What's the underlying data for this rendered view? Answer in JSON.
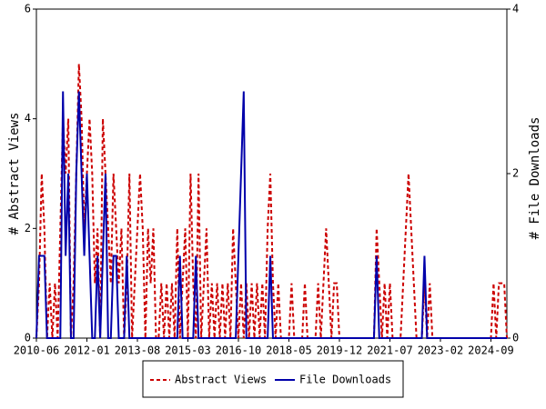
{
  "chart_data": {
    "type": "line",
    "x_label": null,
    "y_label": "# Abstract Views",
    "y2_label": "# File Downloads",
    "x": [
      "2010-06",
      "2010-07",
      "2010-08",
      "2010-09",
      "2010-10",
      "2010-11",
      "2010-12",
      "2011-01",
      "2011-02",
      "2011-03",
      "2011-04",
      "2011-05",
      "2011-06",
      "2011-07",
      "2011-08",
      "2011-09",
      "2011-10",
      "2011-11",
      "2011-12",
      "2012-01",
      "2012-02",
      "2012-03",
      "2012-04",
      "2012-05",
      "2012-06",
      "2012-07",
      "2012-08",
      "2012-09",
      "2012-10",
      "2012-11",
      "2012-12",
      "2013-01",
      "2013-02",
      "2013-03",
      "2013-04",
      "2013-05",
      "2013-06",
      "2013-07",
      "2013-08",
      "2013-09",
      "2013-10",
      "2013-11",
      "2013-12",
      "2014-01",
      "2014-02",
      "2014-03",
      "2014-04",
      "2014-05",
      "2014-06",
      "2014-07",
      "2014-08",
      "2014-09",
      "2014-10",
      "2014-11",
      "2014-12",
      "2015-01",
      "2015-02",
      "2015-03",
      "2015-04",
      "2015-05",
      "2015-06",
      "2015-07",
      "2015-08",
      "2015-09",
      "2015-10",
      "2015-11",
      "2015-12",
      "2016-01",
      "2016-02",
      "2016-03",
      "2016-04",
      "2016-05",
      "2016-06",
      "2016-07",
      "2016-08",
      "2016-09",
      "2016-10",
      "2016-11",
      "2016-12",
      "2017-01",
      "2017-02",
      "2017-03",
      "2017-04",
      "2017-05",
      "2017-06",
      "2017-07",
      "2017-08",
      "2017-09",
      "2017-10",
      "2017-11",
      "2017-12",
      "2018-01",
      "2018-02",
      "2018-03",
      "2018-04",
      "2018-05",
      "2018-06",
      "2018-07",
      "2018-08",
      "2018-09",
      "2018-10",
      "2018-11",
      "2018-12",
      "2019-01",
      "2019-02",
      "2019-03",
      "2019-04",
      "2019-05",
      "2019-06",
      "2019-07",
      "2019-08",
      "2019-09",
      "2019-10",
      "2019-11",
      "2019-12",
      "2020-01",
      "2020-02",
      "2020-03",
      "2020-04",
      "2020-05",
      "2020-06",
      "2020-07",
      "2020-08",
      "2020-09",
      "2020-10",
      "2020-11",
      "2020-12",
      "2021-01",
      "2021-02",
      "2021-03",
      "2021-04",
      "2021-05",
      "2021-06",
      "2021-07",
      "2021-08",
      "2021-09",
      "2021-10",
      "2021-11",
      "2021-12",
      "2022-01",
      "2022-02",
      "2022-03",
      "2022-04",
      "2022-05",
      "2022-06",
      "2022-07",
      "2022-08",
      "2022-09",
      "2022-10",
      "2022-11",
      "2022-12",
      "2023-01",
      "2023-02",
      "2023-03",
      "2023-04",
      "2023-05",
      "2023-06",
      "2023-07",
      "2023-08",
      "2023-09",
      "2023-10",
      "2023-11",
      "2023-12",
      "2024-01",
      "2024-02",
      "2024-03",
      "2024-04",
      "2024-05",
      "2024-06",
      "2024-07",
      "2024-08",
      "2024-09",
      "2024-10",
      "2024-11",
      "2024-12",
      "2025-01",
      "2025-02",
      "2025-03"
    ],
    "xlim": [
      "2010-06",
      "2025-03"
    ],
    "xticks": [
      "2010-06",
      "2012-01",
      "2013-08",
      "2015-03",
      "2016-10",
      "2018-05",
      "2019-12",
      "2021-07",
      "2023-02",
      "2024-09"
    ],
    "ylim": [
      0,
      6
    ],
    "yticks": [
      0,
      2,
      4,
      6
    ],
    "y2lim": [
      0,
      4
    ],
    "y2ticks": [
      0,
      2,
      4
    ],
    "legend": "bottom",
    "series": [
      {
        "name": "Abstract Views",
        "color": "#cc0000",
        "dash": true,
        "values": [
          0,
          1,
          3,
          2,
          0,
          1,
          0,
          1,
          0,
          2,
          4,
          3,
          4,
          0,
          1,
          3,
          5,
          4,
          2,
          3,
          4,
          3,
          1,
          2,
          0,
          4,
          3,
          2,
          1,
          3,
          2,
          1,
          2,
          0,
          1,
          3,
          0,
          1,
          2,
          3,
          2,
          0,
          2,
          1,
          2,
          0,
          0,
          1,
          0,
          1,
          0,
          1,
          0,
          2,
          0,
          1,
          2,
          0,
          3,
          1,
          0,
          3,
          0,
          1,
          2,
          0,
          1,
          0,
          1,
          0,
          1,
          0,
          1,
          0,
          2,
          1,
          0,
          1,
          0,
          1,
          0,
          1,
          0,
          1,
          0,
          1,
          0,
          2,
          3,
          1,
          0,
          1,
          0,
          0,
          0,
          0,
          1,
          0,
          0,
          0,
          0,
          1,
          0,
          0,
          0,
          0,
          1,
          0,
          1,
          2,
          1,
          0,
          1,
          1,
          0,
          0,
          0,
          0,
          0,
          0,
          0,
          0,
          0,
          0,
          0,
          0,
          0,
          0,
          2,
          1,
          0,
          1,
          0,
          1,
          0,
          0,
          0,
          0,
          1,
          2,
          3,
          2,
          1,
          0,
          0,
          0,
          1,
          0,
          1,
          0,
          0,
          0,
          0,
          0,
          0,
          0,
          0,
          0,
          0,
          0,
          0,
          0,
          0,
          0,
          0,
          0,
          0,
          0,
          0,
          0,
          0,
          0,
          1,
          0,
          1,
          1,
          1,
          0
        ]
      },
      {
        "name": "File Downloads",
        "color": "#0000aa",
        "dash": false,
        "axis": "y2",
        "values": [
          0,
          1,
          1,
          1,
          0,
          0,
          0,
          0,
          0,
          0,
          3,
          1,
          2,
          0,
          0,
          2,
          3,
          2,
          1,
          2,
          1,
          0,
          0,
          1,
          0,
          1,
          2,
          0,
          0,
          1,
          1,
          0,
          0,
          0,
          1,
          0,
          0,
          0,
          0,
          0,
          0,
          0,
          0,
          0,
          0,
          0,
          0,
          0,
          0,
          0,
          0,
          0,
          0,
          0,
          1,
          0,
          0,
          0,
          0,
          0,
          1,
          0,
          0,
          0,
          0,
          0,
          0,
          0,
          0,
          0,
          0,
          0,
          0,
          0,
          0,
          0,
          1,
          2,
          3,
          0,
          0,
          0,
          0,
          0,
          0,
          0,
          0,
          0,
          1,
          0,
          0,
          0,
          0,
          0,
          0,
          0,
          0,
          0,
          0,
          0,
          0,
          0,
          0,
          0,
          0,
          0,
          0,
          0,
          0,
          0,
          0,
          0,
          0,
          0,
          0,
          0,
          0,
          0,
          0,
          0,
          0,
          0,
          0,
          0,
          0,
          0,
          0,
          0,
          1,
          0,
          0,
          0,
          0,
          0,
          0,
          0,
          0,
          0,
          0,
          0,
          0,
          0,
          0,
          0,
          0,
          0,
          1,
          0,
          0,
          0,
          0,
          0,
          0,
          0,
          0,
          0,
          0,
          0,
          0,
          0,
          0,
          0,
          0,
          0,
          0,
          0,
          0,
          0,
          0,
          0,
          0,
          0,
          0,
          0,
          0,
          0,
          0,
          0
        ]
      }
    ]
  }
}
